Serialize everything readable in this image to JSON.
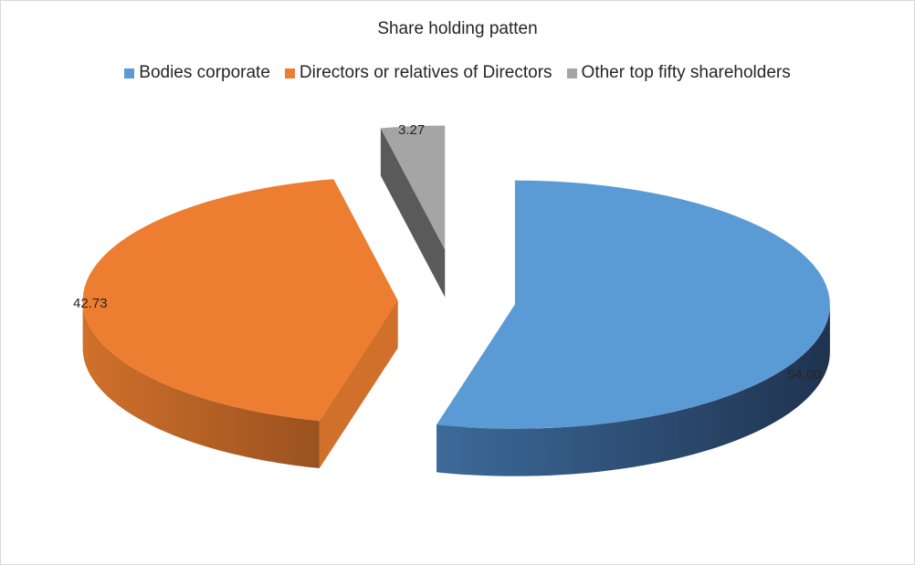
{
  "chart_data": {
    "type": "pie",
    "title": "Share holding patten",
    "legend_position": "top",
    "slices": [
      {
        "name": "Bodies corporate",
        "value": 54.0,
        "label": "54.00",
        "color": "#5B9BD5",
        "side_dark": "#223A5E",
        "side_light": "#3D6A9A"
      },
      {
        "name": "Directors or relatives of Directors",
        "value": 42.73,
        "label": "42.73",
        "color": "#ED7D31",
        "side_dark": "#8E4A1D",
        "side_light": "#D0702B"
      },
      {
        "name": "Other top fifty shareholders",
        "value": 3.27,
        "label": "3.27",
        "color": "#A5A5A5",
        "side_dark": "#3A3A3A",
        "side_light": "#5A5A5A"
      }
    ]
  }
}
